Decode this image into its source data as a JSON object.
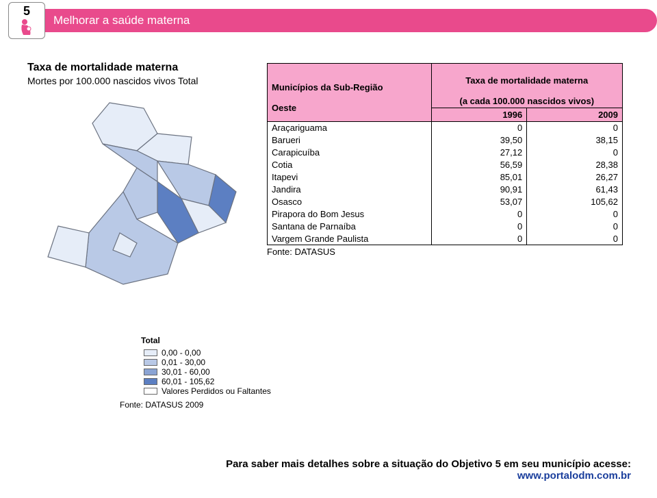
{
  "header": {
    "objective_number": "5",
    "title": "Melhorar a saúde materna"
  },
  "chart": {
    "title": "Taxa de mortalidade materna",
    "subtitle": "Mortes por 100.000 nascidos vivos Total"
  },
  "table": {
    "region_header_line1": "Municípios da Sub-Região",
    "region_header_line2": "Oeste",
    "metric_header_line1": "Taxa de mortalidade materna",
    "metric_header_line2": "(a cada 100.000 nascidos vivos)",
    "year1": "1996",
    "year2": "2009",
    "rows": [
      {
        "name": "Araçariguama",
        "v1": "0",
        "v2": "0"
      },
      {
        "name": "Barueri",
        "v1": "39,50",
        "v2": "38,15"
      },
      {
        "name": "Carapicuíba",
        "v1": "27,12",
        "v2": "0"
      },
      {
        "name": "Cotia",
        "v1": "56,59",
        "v2": "28,38"
      },
      {
        "name": "Itapevi",
        "v1": "85,01",
        "v2": "26,27"
      },
      {
        "name": "Jandira",
        "v1": "90,91",
        "v2": "61,43"
      },
      {
        "name": "Osasco",
        "v1": "53,07",
        "v2": "105,62"
      },
      {
        "name": "Pirapora do Bom Jesus",
        "v1": "0",
        "v2": "0"
      },
      {
        "name": "Santana de Parnaíba",
        "v1": "0",
        "v2": "0"
      },
      {
        "name": "Vargem Grande Paulista",
        "v1": "0",
        "v2": "0"
      }
    ],
    "source": "Fonte: DATASUS"
  },
  "legend": {
    "title": "Total",
    "items": [
      {
        "color": "#e6edf8",
        "label": "0,00 - 0,00"
      },
      {
        "color": "#b9c9e6",
        "label": "0,01 - 30,00"
      },
      {
        "color": "#8ba4d4",
        "label": "30,01 - 60,00"
      },
      {
        "color": "#5c7fc2",
        "label": "60,01 - 105,62"
      },
      {
        "color": "#ffffff",
        "label": "Valores Perdidos ou Faltantes"
      }
    ],
    "source_label": "Fonte:",
    "source_value": "DATASUS 2009"
  },
  "map": {
    "stroke": "#6b7280",
    "colors": {
      "c0": "#e6edf8",
      "c1": "#b9c9e6",
      "c2": "#8ba4d4",
      "c3": "#5c7fc2"
    }
  },
  "footer": {
    "text": "Para saber mais detalhes sobre a situação do Objetivo 5 em seu município acesse:",
    "url": "www.portalodm.com.br"
  },
  "colors": {
    "pink_header": "#f7a6cc",
    "brand_pink": "#e94a8c"
  }
}
